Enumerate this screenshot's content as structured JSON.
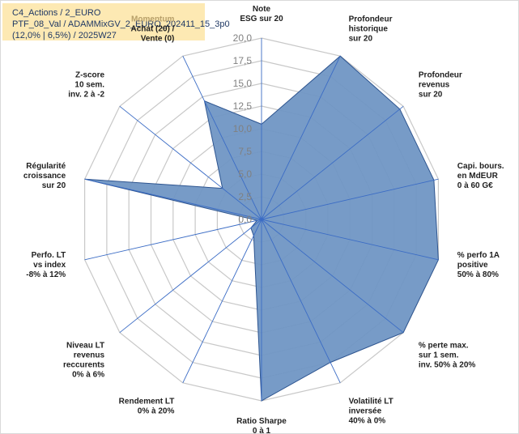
{
  "header": {
    "line1": "C4_Actions / 2_EURO",
    "line2": "PTF_08_Val / ADAMMixGV_2_EURO_202411_15_3p0",
    "line3": "(12,0% | 6,5%) / 2025W27"
  },
  "chart_data": {
    "type": "radar",
    "title": "",
    "rmin": 0,
    "rmax": 20,
    "rstep": 2.5,
    "tick_labels": [
      "0,0",
      "2,5",
      "5,0",
      "7,5",
      "10,0",
      "12,5",
      "15,0",
      "17,5",
      "20,0"
    ],
    "axes": [
      {
        "label": [
          "Note",
          "ESG sur 20"
        ],
        "value": 10.5
      },
      {
        "label": [
          "Profondeur",
          "historique",
          "sur 20"
        ],
        "value": 20
      },
      {
        "label": [
          "Profondeur",
          "revenus",
          "sur 20"
        ],
        "value": 19.5
      },
      {
        "label": [
          "Capi. bours.",
          "en MdEUR",
          "0 à 60 G€"
        ],
        "value": 19.5
      },
      {
        "label": [
          "% perfo 1A",
          "positive",
          "50% à 80%"
        ],
        "value": 20
      },
      {
        "label": [
          "% perte max.",
          "sur 1 sem.",
          "inv. 50% à 20%"
        ],
        "value": 20
      },
      {
        "label": [
          "Volatilité LT",
          "inversée",
          "40% à 0%"
        ],
        "value": 17.5
      },
      {
        "label": [
          "Ratio Sharpe",
          "0 à 1"
        ],
        "value": 20
      },
      {
        "label": [
          "Rendement LT",
          "0% à 20%"
        ],
        "value": 2
      },
      {
        "label": [
          "Niveau LT",
          "revenus",
          "reccurents",
          "0% à 6%"
        ],
        "value": 1.5
      },
      {
        "label": [
          "Perfo. LT",
          "vs index",
          "-8% à 12%"
        ],
        "value": 0.5
      },
      {
        "label": [
          "Régularité",
          "croissance",
          "sur 20"
        ],
        "value": 20
      },
      {
        "label": [
          "Z-score",
          "10 sem.",
          "inv. 2 à -2"
        ],
        "value": 5.5
      },
      {
        "label": [
          "Momentum",
          "Achat (20) /",
          "Vente (0)"
        ],
        "value": 14.5
      }
    ],
    "colors": {
      "fill": "#7096c4",
      "stroke": "#2e5590",
      "grid": "#c8c8c8",
      "spoke": "#3b6cc5",
      "label": "#1f1f1f",
      "tick": "#808080",
      "momentum_word": "#b8a06a"
    },
    "grid": true,
    "legend": "none"
  }
}
